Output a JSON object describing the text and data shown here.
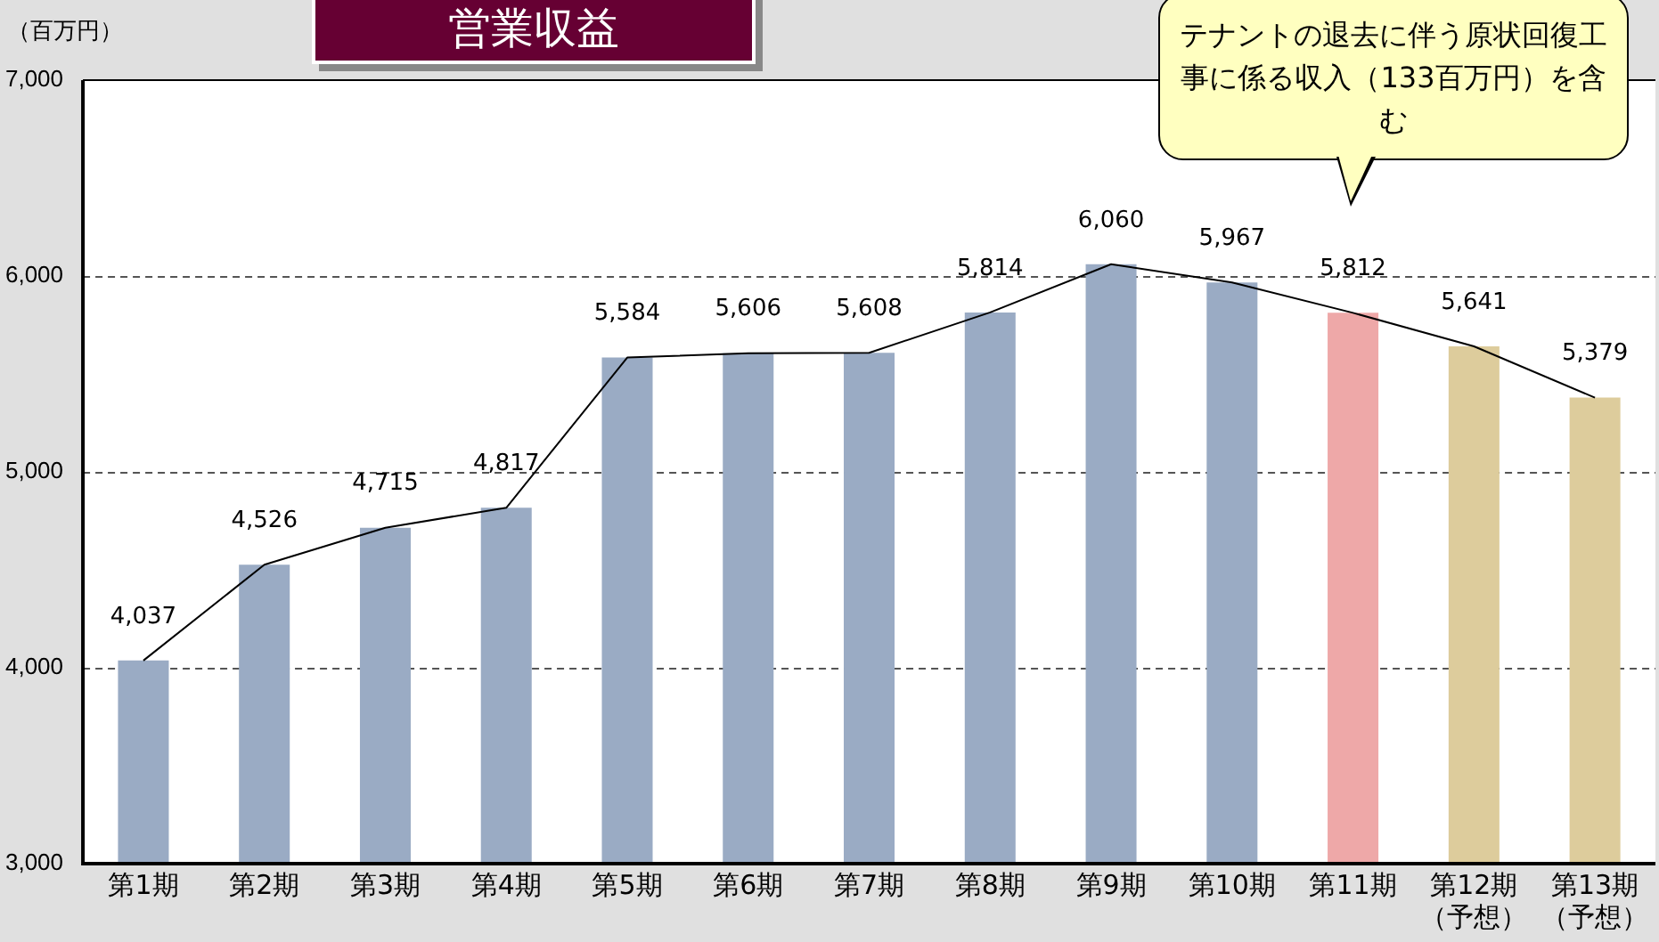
{
  "chart_data": {
    "type": "bar",
    "title": "営業収益",
    "ylabel": "（百万円）",
    "categories": [
      "第1期",
      "第2期",
      "第3期",
      "第4期",
      "第5期",
      "第6期",
      "第7期",
      "第8期",
      "第9期",
      "第10期",
      "第11期",
      "第12期（予想）",
      "第13期（予想）"
    ],
    "series": [
      {
        "values": [
          4037,
          4526,
          4715,
          4817,
          5584,
          5606,
          5608,
          5814,
          6060,
          5967,
          5812,
          5641,
          5379
        ],
        "value_labels": [
          "4,037",
          "4,526",
          "4,715",
          "4,817",
          "5,584",
          "5,606",
          "5,608",
          "5,814",
          "6,060",
          "5,967",
          "5,812",
          "5,641",
          "5,379"
        ],
        "colors": [
          "#9aabc4",
          "#9aabc4",
          "#9aabc4",
          "#9aabc4",
          "#9aabc4",
          "#9aabc4",
          "#9aabc4",
          "#9aabc4",
          "#9aabc4",
          "#9aabc4",
          "#eea8a8",
          "#ddcc9c",
          "#ddcc9c"
        ]
      },
      {
        "type": "line",
        "color": "#000000",
        "values": [
          4037,
          4526,
          4715,
          4817,
          5584,
          5606,
          5608,
          5814,
          6060,
          5967,
          5812,
          5641,
          5379
        ]
      }
    ],
    "ylim": [
      3000,
      7000
    ],
    "yticks": [
      {
        "value": 3000,
        "label": "3,000"
      },
      {
        "value": 4000,
        "label": "4,000"
      },
      {
        "value": 5000,
        "label": "5,000"
      },
      {
        "value": 6000,
        "label": "6,000"
      },
      {
        "value": 7000,
        "label": "7,000"
      }
    ],
    "grid": "y",
    "line_style": "solid",
    "marker": "none",
    "legend": false,
    "annotations": [
      "テナントの退去に伴う原状回復工事に係る収入（133百万円）を含む"
    ]
  }
}
